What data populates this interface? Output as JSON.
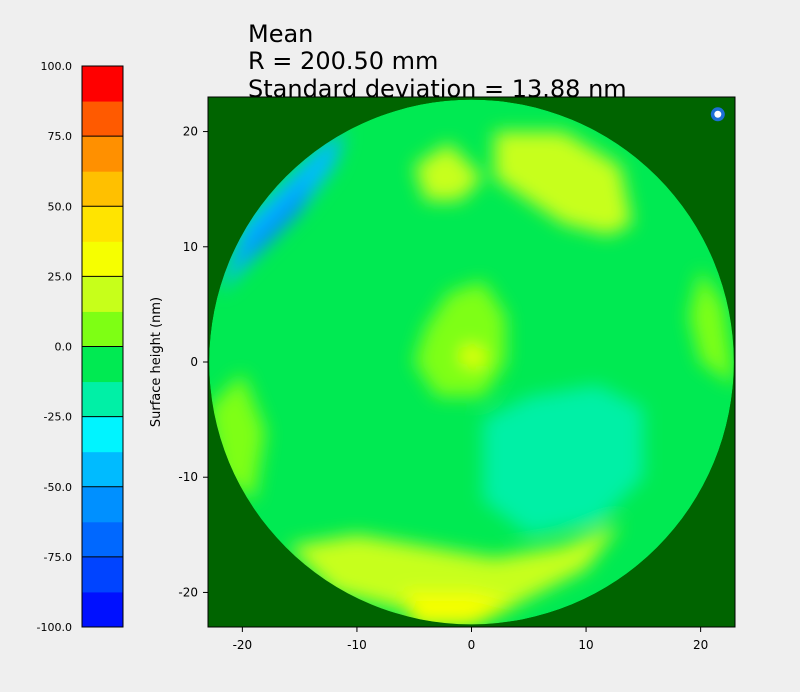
{
  "chart_data": {
    "type": "heatmap",
    "title": [
      "Mean",
      "R = 200.50 mm",
      "Standard deviation = 13.88 nm"
    ],
    "ylabel": "Surface height (nm)",
    "xlabel": "",
    "xlim": [
      -23,
      23
    ],
    "ylim": [
      -23,
      23
    ],
    "xticks": [
      -20,
      -10,
      0,
      10,
      20
    ],
    "yticks": [
      -20,
      -10,
      0,
      10,
      20
    ],
    "aperture_radius": 22.9,
    "background_color": "#006400",
    "marker": {
      "x": 21.5,
      "y": 21.5
    },
    "colorbar": {
      "range": [
        -100,
        100
      ],
      "ticks": [
        "-100.0",
        "-75.0",
        "-50.0",
        "-25.0",
        "0.0",
        "25.0",
        "50.0",
        "75.0",
        "100.0"
      ],
      "levels": [
        {
          "from": -100,
          "to": -87.5,
          "color": "#0010ff"
        },
        {
          "from": -87.5,
          "to": -75,
          "color": "#0044ff"
        },
        {
          "from": -75,
          "to": -62.5,
          "color": "#0068ff"
        },
        {
          "from": -62.5,
          "to": -50,
          "color": "#0090ff"
        },
        {
          "from": -50,
          "to": -37.5,
          "color": "#00bbff"
        },
        {
          "from": -37.5,
          "to": -25,
          "color": "#00f4ff"
        },
        {
          "from": -25,
          "to": -12.5,
          "color": "#00f0a6"
        },
        {
          "from": -12.5,
          "to": 0,
          "color": "#00ea52"
        },
        {
          "from": 0,
          "to": 12.5,
          "color": "#7eff14"
        },
        {
          "from": 12.5,
          "to": 25,
          "color": "#c7ff1a"
        },
        {
          "from": 25,
          "to": 37.5,
          "color": "#f6ff00"
        },
        {
          "from": 37.5,
          "to": 50,
          "color": "#ffe400"
        },
        {
          "from": 50,
          "to": 62.5,
          "color": "#ffc000"
        },
        {
          "from": 62.5,
          "to": 75,
          "color": "#ff9000"
        },
        {
          "from": 75,
          "to": 87.5,
          "color": "#ff5a00"
        },
        {
          "from": 87.5,
          "to": 100,
          "color": "#ff0000"
        }
      ]
    },
    "regions": [
      {
        "name": "upper-left-edge",
        "value": -40,
        "points": [
          [
            -22,
            6
          ],
          [
            -20,
            12
          ],
          [
            -16,
            16
          ],
          [
            -13,
            19
          ],
          [
            -11,
            20
          ],
          [
            -12,
            17
          ],
          [
            -15,
            13
          ],
          [
            -19,
            9
          ]
        ]
      },
      {
        "name": "upper-left-cyan",
        "value": -55,
        "points": [
          [
            -21,
            8
          ],
          [
            -19,
            11
          ],
          [
            -16,
            14
          ],
          [
            -14,
            16
          ],
          [
            -15,
            13
          ],
          [
            -18,
            10
          ]
        ]
      },
      {
        "name": "upper-right-bump",
        "value": 15,
        "points": [
          [
            2,
            20
          ],
          [
            8,
            20
          ],
          [
            13,
            17
          ],
          [
            14,
            12
          ],
          [
            12,
            11
          ],
          [
            8,
            12
          ],
          [
            5,
            14
          ],
          [
            2,
            16
          ]
        ]
      },
      {
        "name": "upper-middle-bump",
        "value": 15,
        "points": [
          [
            -5,
            17
          ],
          [
            -2,
            19
          ],
          [
            1,
            16
          ],
          [
            -1,
            14
          ],
          [
            -4,
            14
          ]
        ]
      },
      {
        "name": "center-bump",
        "value": 12,
        "points": [
          [
            -4,
            3
          ],
          [
            -2,
            6
          ],
          [
            1,
            7
          ],
          [
            3,
            4
          ],
          [
            3,
            0
          ],
          [
            1,
            -3
          ],
          [
            -3,
            -3
          ],
          [
            -5,
            0
          ]
        ]
      },
      {
        "name": "center-peak",
        "value": 30,
        "points": [
          [
            -1,
            0
          ],
          [
            -0.5,
            1.5
          ],
          [
            1,
            1
          ],
          [
            1,
            -0.5
          ]
        ]
      },
      {
        "name": "lower-right-trough",
        "value": -18,
        "points": [
          [
            1,
            -5
          ],
          [
            5,
            -3
          ],
          [
            11,
            -2
          ],
          [
            15,
            -4
          ],
          [
            15,
            -10
          ],
          [
            11,
            -14
          ],
          [
            5,
            -15
          ],
          [
            1,
            -12
          ]
        ]
      },
      {
        "name": "left-edge",
        "value": 12,
        "points": [
          [
            -23,
            -4
          ],
          [
            -20,
            -1
          ],
          [
            -18,
            -6
          ],
          [
            -19,
            -12
          ],
          [
            -22,
            -10
          ]
        ]
      },
      {
        "name": "lower-band",
        "value": 15,
        "points": [
          [
            -16,
            -16
          ],
          [
            -10,
            -15
          ],
          [
            -4,
            -16
          ],
          [
            2,
            -17
          ],
          [
            8,
            -16
          ],
          [
            13,
            -14
          ],
          [
            10,
            -18
          ],
          [
            4,
            -21
          ],
          [
            -4,
            -22
          ],
          [
            -12,
            -20
          ]
        ]
      },
      {
        "name": "bottom-peak",
        "value": 30,
        "points": [
          [
            -6,
            -20
          ],
          [
            0,
            -20
          ],
          [
            4,
            -21
          ],
          [
            0,
            -23
          ],
          [
            -5,
            -23
          ]
        ]
      },
      {
        "name": "right-edge",
        "value": 12,
        "points": [
          [
            20,
            8
          ],
          [
            22,
            5
          ],
          [
            23,
            -2
          ],
          [
            20,
            0
          ],
          [
            19,
            4
          ]
        ]
      }
    ]
  }
}
